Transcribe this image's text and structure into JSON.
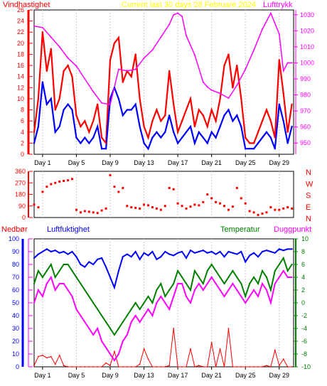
{
  "colors": {
    "wind_gust": "#ff0000",
    "wind_mean": "#0000ff",
    "pressure": "#ff00ff",
    "direction": "#ff0000",
    "precip": "#ff0000",
    "humidity": "#0000ff",
    "temperature": "#008000",
    "dewpoint": "#ff00ff",
    "title": "#ffff00",
    "axis": "#000000",
    "precip_axis": "#0000ff",
    "temp_axis": "#008000"
  },
  "chart_data": [
    {
      "type": "line",
      "title": "Current last 30 days 28 Februare 2024",
      "left_label": "Vindhastighet",
      "right_label": "Lufttrykk",
      "y_ticks": [
        "0",
        "2",
        "4",
        "6",
        "8",
        "10",
        "12",
        "14",
        "16",
        "18",
        "20",
        "22",
        "24",
        "26"
      ],
      "ylim": [
        0,
        26
      ],
      "y2_ticks": [
        "950",
        "960",
        "970",
        "980",
        "990",
        "1000",
        "1010",
        "1020",
        "1030"
      ],
      "y2lim": [
        943,
        1033
      ],
      "x_ticks": [
        "Day 1",
        "Day 5",
        "Day 9",
        "Day 13",
        "Day 17",
        "Day 21",
        "Day 25",
        "Day 29"
      ],
      "x_tick_days": [
        1,
        5,
        9,
        13,
        17,
        21,
        25,
        29
      ],
      "xlim": [
        0,
        30.7
      ],
      "series": [
        {
          "key": "gust",
          "x": [
            0,
            0.5,
            1,
            1.5,
            2,
            2.5,
            3,
            3.5,
            4,
            4.5,
            5,
            5.5,
            6,
            6.5,
            7,
            7.5,
            8,
            8.5,
            9,
            9.5,
            10,
            10.5,
            11,
            11.5,
            12,
            12.5,
            13,
            13.5,
            14,
            14.5,
            15,
            15.5,
            16,
            16.5,
            17,
            17.5,
            18,
            18.5,
            19,
            19.5,
            20,
            20.5,
            21,
            21.5,
            22,
            22.5,
            23,
            23.5,
            24,
            24.5,
            25,
            25.5,
            26,
            26.5,
            27,
            27.5,
            28,
            28.5,
            29,
            29.5,
            30,
            30.5
          ],
          "values": [
            4,
            10,
            22,
            15,
            19,
            8,
            10,
            15,
            16,
            14,
            7,
            5,
            6,
            4,
            6,
            9,
            3,
            2,
            17,
            20,
            21,
            13,
            15,
            14,
            18,
            10,
            5,
            3,
            6,
            8,
            6,
            7,
            15,
            9,
            4,
            6,
            8,
            10,
            5,
            8,
            7,
            5,
            8,
            6,
            10,
            16,
            18,
            12,
            16,
            10,
            3,
            2,
            2,
            4,
            6,
            8,
            6,
            3,
            17,
            11,
            4,
            9
          ]
        },
        {
          "key": "mean",
          "x": [
            0,
            0.5,
            1,
            1.5,
            2,
            2.5,
            3,
            3.5,
            4,
            4.5,
            5,
            5.5,
            6,
            6.5,
            7,
            7.5,
            8,
            8.5,
            9,
            9.5,
            10,
            10.5,
            11,
            11.5,
            12,
            12.5,
            13,
            13.5,
            14,
            14.5,
            15,
            15.5,
            16,
            16.5,
            17,
            17.5,
            18,
            18.5,
            19,
            19.5,
            20,
            20.5,
            21,
            21.5,
            22,
            22.5,
            23,
            23.5,
            24,
            24.5,
            25,
            25.5,
            26,
            26.5,
            27,
            27.5,
            28,
            28.5,
            29,
            29.5,
            30,
            30.5
          ],
          "values": [
            2,
            5,
            13,
            9,
            10,
            4,
            5,
            8,
            9,
            8,
            3,
            2,
            3,
            2,
            3,
            5,
            1,
            1,
            10,
            12,
            10,
            7,
            8,
            8,
            9,
            5,
            2,
            1,
            3,
            4,
            3,
            4,
            7,
            4,
            2,
            3,
            4,
            5,
            2,
            4,
            3,
            2,
            4,
            3,
            5,
            7,
            8,
            6,
            7,
            5,
            1,
            1,
            1,
            2,
            3,
            4,
            3,
            1,
            9,
            6,
            2,
            5
          ]
        },
        {
          "key": "pressure",
          "x": [
            0,
            1,
            2,
            3,
            4,
            5,
            6,
            7,
            8,
            9,
            10,
            11,
            12,
            13,
            14,
            15,
            16,
            16.5,
            17,
            17.5,
            18,
            19,
            20,
            20.5,
            21,
            22,
            23,
            24,
            25,
            26,
            27,
            28,
            29,
            29.5,
            30,
            30.5
          ],
          "values": [
            1023,
            1022,
            1016,
            1010,
            1003,
            998,
            990,
            982,
            975,
            974,
            996,
            995,
            996,
            1003,
            1008,
            1016,
            1024,
            1030,
            1031,
            1029,
            1017,
            1005,
            988,
            985,
            983,
            981,
            978,
            986,
            996,
            1008,
            1021,
            1031,
            1018,
            995,
            1000,
            1000
          ]
        }
      ]
    },
    {
      "type": "scatter",
      "y_ticks": [
        "0",
        "90",
        "180",
        "270",
        "360"
      ],
      "ylim": [
        0,
        360
      ],
      "direction_labels": [
        "N",
        "W",
        "S",
        "E",
        "N"
      ],
      "series": [
        {
          "key": "direction",
          "x": [
            0,
            0.5,
            1,
            1.5,
            2,
            2.5,
            3,
            3.5,
            4,
            4.5,
            5,
            5.5,
            6,
            6.5,
            7,
            7.5,
            8,
            8.5,
            9,
            9.5,
            10,
            10.5,
            11,
            11.5,
            12,
            12.5,
            13,
            13.5,
            14,
            14.5,
            15,
            15.5,
            16,
            16.5,
            17,
            17.5,
            18,
            18.5,
            19,
            19.5,
            20,
            20.5,
            21,
            21.5,
            22,
            22.5,
            23,
            23.5,
            24,
            24.5,
            25,
            25.5,
            26,
            26.5,
            27,
            27.5,
            28,
            28.5,
            29,
            29.5,
            30,
            30.5
          ],
          "values": [
            100,
            80,
            200,
            240,
            260,
            270,
            280,
            285,
            290,
            300,
            60,
            40,
            50,
            45,
            40,
            35,
            55,
            70,
            330,
            240,
            200,
            230,
            90,
            80,
            75,
            70,
            100,
            95,
            80,
            70,
            60,
            90,
            230,
            220,
            110,
            90,
            70,
            85,
            100,
            95,
            120,
            180,
            150,
            120,
            110,
            90,
            60,
            85,
            230,
            150,
            110,
            50,
            40,
            20,
            30,
            40,
            80,
            60,
            60,
            70,
            80,
            70
          ]
        }
      ]
    },
    {
      "type": "line",
      "left_label": "Nedbør",
      "humidity_label": "Luftfuktighet",
      "temp_label": "Temperatur",
      "dew_label": "Duggpunkt",
      "y_ticks": [
        "0",
        "10",
        "20",
        "30",
        "40",
        "50",
        "60",
        "70",
        "80",
        "90",
        "100"
      ],
      "ylim": [
        0,
        100
      ],
      "y2_ticks": [
        "-10",
        "-8",
        "-6",
        "-4",
        "-2",
        "0",
        "2",
        "4",
        "6",
        "8",
        "10"
      ],
      "y2lim": [
        -10,
        10
      ],
      "x_ticks": [
        "Day 1",
        "Day 5",
        "Day 9",
        "Day 13",
        "Day 17",
        "Day 21",
        "Day 25",
        "Day 29"
      ],
      "series": [
        {
          "key": "humidity",
          "x": [
            0,
            0.5,
            1,
            1.5,
            2,
            2.5,
            3,
            3.5,
            4,
            4.5,
            5,
            5.5,
            6,
            6.5,
            7,
            7.5,
            8,
            8.5,
            9,
            9.5,
            10,
            10.5,
            11,
            11.5,
            12,
            12.5,
            13,
            13.5,
            14,
            14.5,
            15,
            15.5,
            16,
            16.5,
            17,
            17.5,
            18,
            18.5,
            19,
            19.5,
            20,
            20.5,
            21,
            21.5,
            22,
            22.5,
            23,
            23.5,
            24,
            24.5,
            25,
            25.5,
            26,
            26.5,
            27,
            27.5,
            28,
            28.5,
            29,
            29.5,
            30,
            30.5
          ],
          "values": [
            85,
            88,
            90,
            92,
            90,
            91,
            89,
            90,
            88,
            90,
            86,
            80,
            78,
            82,
            80,
            84,
            85,
            78,
            70,
            62,
            75,
            86,
            88,
            86,
            90,
            84,
            89,
            87,
            90,
            84,
            86,
            90,
            88,
            87,
            89,
            90,
            85,
            91,
            89,
            90,
            91,
            89,
            90,
            88,
            90,
            86,
            90,
            89,
            88,
            90,
            82,
            87,
            89,
            86,
            90,
            91,
            90,
            89,
            92,
            91,
            92,
            92
          ]
        },
        {
          "key": "temp",
          "x": [
            0,
            0.5,
            1,
            1.5,
            2,
            2.5,
            3,
            3.5,
            4,
            4.5,
            5,
            5.5,
            6,
            6.5,
            7,
            7.5,
            8,
            8.5,
            9,
            9.5,
            10,
            10.5,
            11,
            11.5,
            12,
            12.5,
            13,
            13.5,
            14,
            14.5,
            15,
            15.5,
            16,
            16.5,
            17,
            17.5,
            18,
            18.5,
            19,
            19.5,
            20,
            20.5,
            21,
            21.5,
            22,
            22.5,
            23,
            23.5,
            24,
            24.5,
            25,
            25.5,
            26,
            26.5,
            27,
            27.5,
            28,
            28.5,
            29,
            29.5,
            30,
            30.5
          ],
          "values": [
            3,
            5,
            4,
            5,
            6,
            4,
            5,
            6,
            6,
            5,
            4,
            3,
            2,
            1,
            0,
            -1,
            -2,
            -3,
            -4,
            -5,
            -4,
            -3,
            -2,
            -1,
            0,
            -1,
            0,
            1,
            0,
            2,
            3,
            1,
            2,
            3,
            5,
            4,
            3,
            2,
            5,
            4,
            3,
            5,
            6,
            5,
            4,
            3,
            4,
            5,
            4,
            3,
            1,
            3,
            4,
            3,
            5,
            4,
            2,
            5,
            6,
            7,
            5,
            6
          ]
        },
        {
          "key": "dew",
          "x": [
            0,
            0.5,
            1,
            1.5,
            2,
            2.5,
            3,
            3.5,
            4,
            4.5,
            5,
            5.5,
            6,
            6.5,
            7,
            7.5,
            8,
            8.5,
            9,
            9.5,
            10,
            10.5,
            11,
            11.5,
            12,
            12.5,
            13,
            13.5,
            14,
            14.5,
            15,
            15.5,
            16,
            16.5,
            17,
            17.5,
            18,
            18.5,
            19,
            19.5,
            20,
            20.5,
            21,
            21.5,
            22,
            22.5,
            23,
            23.5,
            24,
            24.5,
            25,
            25.5,
            26,
            26.5,
            27,
            27.5,
            28,
            28.5,
            29,
            29.5,
            30,
            30.5
          ],
          "values": [
            0,
            2,
            1,
            3,
            4,
            2,
            3,
            3,
            2,
            1,
            -1,
            -2,
            -3,
            -4,
            -5,
            -4,
            -6,
            -7,
            -8,
            -9,
            -8,
            -6,
            -5,
            -3,
            -2,
            -3,
            -2,
            -1,
            -2,
            0,
            1,
            0,
            -1,
            1,
            3,
            3,
            1,
            0,
            2,
            3,
            2,
            3,
            4,
            3,
            2,
            1,
            2,
            3,
            2,
            1,
            0,
            1,
            2,
            1,
            3,
            2,
            0,
            3,
            4,
            5,
            4,
            4
          ]
        },
        {
          "key": "precip",
          "x": [
            0,
            0.5,
            1,
            1.5,
            2,
            2.5,
            3,
            3.5,
            4,
            4.5,
            5,
            5.5,
            6,
            6.5,
            7,
            7.5,
            8,
            8.5,
            9,
            9.5,
            10,
            10.5,
            11,
            11.5,
            12,
            12.5,
            13,
            13.5,
            14,
            14.5,
            15,
            15.5,
            16,
            16.5,
            17,
            17.5,
            18,
            18.5,
            19,
            19.5,
            20,
            20.5,
            21,
            21.5,
            22,
            22.5,
            23,
            23.5,
            24,
            24.5,
            25,
            25.5,
            26,
            26.5,
            27,
            27.5,
            28,
            28.5,
            29,
            29.5,
            30,
            30.5
          ],
          "values": [
            1,
            8,
            9,
            7,
            8,
            2,
            9,
            1,
            0,
            0,
            0,
            0,
            0,
            0,
            0,
            0,
            0,
            3,
            1,
            12,
            0,
            0,
            0,
            0,
            0,
            2,
            14,
            6,
            0,
            0,
            0,
            0,
            1,
            30,
            0,
            0,
            0,
            14,
            0,
            1,
            0,
            0,
            19,
            0,
            14,
            0,
            30,
            0,
            0,
            0,
            0,
            0,
            0,
            0,
            0,
            1,
            0,
            13,
            1,
            6,
            0,
            0
          ]
        }
      ]
    }
  ]
}
